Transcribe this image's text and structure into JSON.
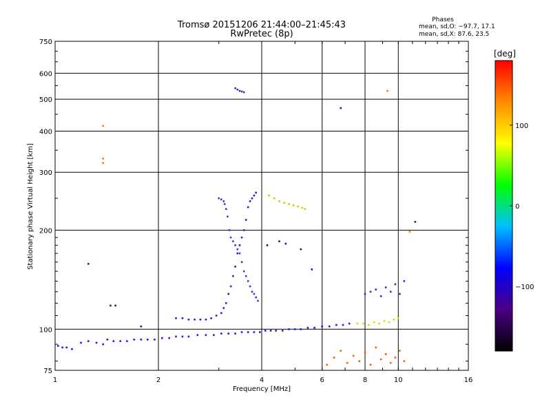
{
  "title_line1": "Tromsø 20151206 21:44:00–21:45:43",
  "title_line2": "RwPretec (8p)",
  "phases_header": "Phases",
  "phases_o": "mean, sd,O: −97.7, 17.1",
  "phases_x": "mean, sd,X:  87.6, 23.5",
  "chart_data": {
    "type": "scatter",
    "xlabel": "Frequency [MHz]",
    "ylabel": "Stationary phase Virtual Height [km]",
    "xscale": "log2",
    "yscale": "log",
    "xlim": [
      1,
      16
    ],
    "ylim": [
      75,
      750
    ],
    "xticks": [
      1,
      2,
      4,
      6,
      8,
      10,
      16
    ],
    "xtick_labels": [
      "1",
      "2",
      "4",
      "6",
      "8",
      "10",
      "16"
    ],
    "yticks": [
      75,
      100,
      200,
      300,
      400,
      500,
      600,
      750
    ],
    "ytick_labels": [
      "75",
      "100",
      "200",
      "300",
      "400",
      "500",
      "600",
      "750"
    ],
    "grid": true,
    "colorbar": {
      "label": "[deg]",
      "range": [
        -180,
        180
      ],
      "ticks": [
        100,
        0,
        -100
      ],
      "tick_labels": [
        "100",
        "0",
        "−100"
      ],
      "colors": [
        "#000000",
        "#4b0082",
        "#0000ff",
        "#00bfff",
        "#00ff00",
        "#ffff00",
        "#ff8c00",
        "#ff0000"
      ]
    },
    "series": [
      {
        "name": "",
        "color": "#1a1aff",
        "x": [
          1.02,
          1.05,
          1.08,
          1.12,
          1.19,
          1.25,
          1.32,
          1.38,
          1.42,
          1.48,
          1.55,
          1.62,
          1.7,
          1.78,
          1.86,
          1.95,
          2.05,
          2.15,
          2.25,
          2.35,
          2.45,
          2.6,
          2.75,
          2.9,
          3.05,
          3.2,
          3.35,
          3.5,
          3.65,
          3.8,
          3.95,
          4.1,
          4.25,
          4.4,
          4.6,
          4.8,
          5.0,
          5.2,
          5.45,
          5.7,
          6.0,
          6.3,
          6.6,
          6.9,
          7.2
        ],
        "y": [
          89,
          88,
          88,
          87,
          91,
          92,
          91,
          90,
          93,
          92,
          92,
          92,
          93,
          93,
          93,
          93,
          94,
          94,
          95,
          95,
          95,
          96,
          96,
          96,
          97,
          97,
          97,
          98,
          98,
          98,
          98,
          99,
          99,
          99,
          99,
          100,
          100,
          100,
          101,
          101,
          102,
          102,
          103,
          103,
          104
        ]
      },
      {
        "name": "",
        "color": "#2222cc",
        "x": [
          2.25,
          2.35,
          2.45,
          2.55,
          2.65,
          2.75,
          2.85,
          2.95,
          3.05,
          3.1,
          3.15,
          3.2,
          3.25,
          3.3,
          3.35,
          3.4,
          3.45,
          3.5,
          3.55,
          3.6,
          3.65,
          3.7,
          3.75,
          3.8,
          3.85
        ],
        "y": [
          108,
          108,
          107,
          107,
          107,
          107,
          108,
          110,
          112,
          116,
          120,
          128,
          135,
          145,
          155,
          170,
          180,
          190,
          200,
          215,
          235,
          245,
          250,
          255,
          260
        ]
      },
      {
        "name": "",
        "color": "#3b3bd0",
        "x": [
          3.0,
          3.05,
          3.1,
          3.12,
          3.15,
          3.18,
          3.22,
          3.25,
          3.3,
          3.35,
          3.4,
          3.45,
          3.5,
          3.55,
          3.6,
          3.65,
          3.7,
          3.75,
          3.8,
          3.85,
          3.9
        ],
        "y": [
          250,
          248,
          245,
          240,
          232,
          220,
          200,
          190,
          185,
          180,
          175,
          170,
          160,
          150,
          145,
          140,
          135,
          130,
          128,
          125,
          122
        ]
      },
      {
        "name": "",
        "color": "#3d2fb0",
        "x": [
          3.35,
          3.4,
          3.45,
          3.5,
          3.55
        ],
        "y": [
          540,
          535,
          530,
          528,
          525
        ]
      },
      {
        "name": "",
        "color": "#a6e000",
        "x": [
          4.2,
          4.35,
          4.5,
          4.65,
          4.8,
          4.95,
          5.1,
          5.25,
          5.35
        ],
        "y": [
          255,
          250,
          245,
          242,
          240,
          238,
          236,
          234,
          232
        ]
      },
      {
        "name": "",
        "color": "#e0d800",
        "x": [
          7.6,
          7.9,
          8.2,
          8.5,
          8.8,
          9.1,
          9.4,
          9.7,
          10.0
        ],
        "y": [
          104,
          104,
          103,
          105,
          104,
          106,
          105,
          107,
          108
        ]
      },
      {
        "name": "",
        "color": "#2a2af0",
        "x": [
          8.0,
          8.3,
          8.6,
          8.9,
          9.2,
          9.5,
          9.8,
          10.1,
          10.4
        ],
        "y": [
          128,
          130,
          132,
          126,
          134,
          130,
          137,
          128,
          140
        ]
      },
      {
        "name": "",
        "color": "#ff7a00",
        "x": [
          1.38,
          1.38,
          1.38,
          9.3,
          10.8
        ],
        "y": [
          415,
          330,
          320,
          530,
          198
        ]
      },
      {
        "name": "",
        "color": "#ff5a00",
        "x": [
          6.2,
          6.5,
          6.8,
          7.1,
          7.4,
          7.7,
          8.0,
          8.3,
          8.6,
          8.9,
          9.2,
          9.5,
          9.8,
          10.1,
          10.4
        ],
        "y": [
          78,
          82,
          86,
          79,
          83,
          80,
          85,
          78,
          88,
          81,
          84,
          79,
          82,
          86,
          80
        ]
      },
      {
        "name": "",
        "color": "#1a1a9a",
        "x": [
          1.25,
          1.45,
          1.5,
          1.78,
          4.15,
          4.5,
          4.7,
          5.2,
          5.6,
          6.8,
          11.2
        ],
        "y": [
          158,
          118,
          118,
          102,
          180,
          185,
          182,
          175,
          152,
          470,
          212
        ]
      }
    ]
  }
}
